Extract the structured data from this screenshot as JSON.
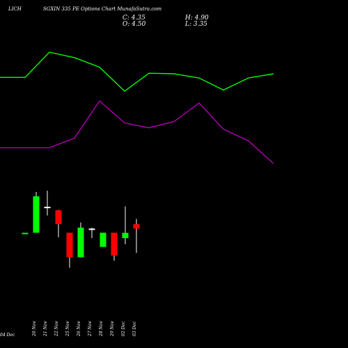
{
  "header": {
    "symbol": "LICH",
    "title": "SGXIN 335 PE Options Chart MunafaSutra.com",
    "close": "C: 4.35",
    "open": "O: 4.50",
    "high": "H: 4.90",
    "low": "L: 3.35"
  },
  "colors": {
    "background": "#000000",
    "text": "#ffffff",
    "up_candle": "#00ff00",
    "down_candle": "#ff0000",
    "doji_candle": "#ffffff",
    "wick": "#ffffff",
    "line_green": "#00ff00",
    "line_magenta": "#b000b0"
  },
  "chart_data": {
    "type": "candlestick",
    "categories": [
      "20 Nov",
      "21 Nov",
      "22 Nov",
      "25 Nov",
      "26 Nov",
      "27 Nov",
      "28 Nov",
      "29 Nov",
      "02 Dec",
      "03 Dec",
      "04 Dec"
    ],
    "candles": [
      {
        "date": "",
        "open": 0.61,
        "close": 0.61,
        "high": 0.61,
        "low": 0.61,
        "color": "green"
      },
      {
        "date": "20 Nov",
        "open": 0.62,
        "close": 4.8,
        "high": 5.3,
        "low": 0.62,
        "color": "green"
      },
      {
        "date": "21 Nov",
        "open": 3.6,
        "close": 3.6,
        "high": 5.45,
        "low": 2.6,
        "color": "white"
      },
      {
        "date": "22 Nov",
        "open": 3.2,
        "close": 1.6,
        "high": 3.25,
        "low": 0.1,
        "color": "red"
      },
      {
        "date": "25 Nov",
        "open": 0.62,
        "close": -2.2,
        "high": 0.62,
        "low": -3.4,
        "color": "red"
      },
      {
        "date": "26 Nov",
        "open": -2.2,
        "close": 1.2,
        "high": 1.8,
        "low": -2.2,
        "color": "green"
      },
      {
        "date": "27 Nov",
        "open": 1.1,
        "close": 1.1,
        "high": 1.2,
        "low": 0.0,
        "color": "white"
      },
      {
        "date": "28 Nov",
        "open": -1.0,
        "close": 0.62,
        "high": 0.62,
        "low": -1.0,
        "color": "green"
      },
      {
        "date": "29 Nov",
        "open": 0.62,
        "close": -2.0,
        "high": 0.62,
        "low": -2.6,
        "color": "red"
      },
      {
        "date": "02 Dec",
        "open": 0.0,
        "close": 0.6,
        "high": 3.65,
        "low": -0.7,
        "color": "green"
      },
      {
        "date": "03 Dec",
        "open": 1.6,
        "close": 1.1,
        "high": 2.2,
        "low": -1.7,
        "color": "red"
      }
    ],
    "green_line": [
      14.1,
      14.1,
      18.3,
      17.4,
      15.8,
      11.8,
      14.8,
      14.7,
      14.0,
      12.0,
      14.0,
      14.7
    ],
    "magenta_line": [
      2.3,
      2.3,
      2.3,
      3.7,
      9.1,
      5.9,
      5.2,
      6.1,
      8.8,
      5.0,
      3.3,
      0.0
    ]
  }
}
